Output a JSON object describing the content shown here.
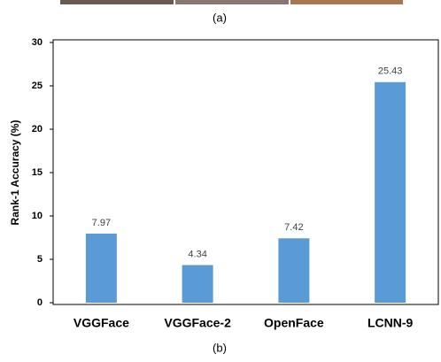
{
  "caption_top": "(a)",
  "chart_data": {
    "type": "bar",
    "ylabel": "Rank-1 Accuracy (%)",
    "categories": [
      "VGGFace",
      "VGGFace-2",
      "OpenFace",
      "LCNN-9"
    ],
    "values": [
      7.97,
      4.34,
      7.42,
      25.43
    ],
    "color": "#5b9bd5",
    "ylim": [
      0,
      30
    ],
    "yticks": [
      0,
      5,
      10,
      15,
      20,
      25,
      30
    ],
    "grid": false
  },
  "caption": "(b)"
}
